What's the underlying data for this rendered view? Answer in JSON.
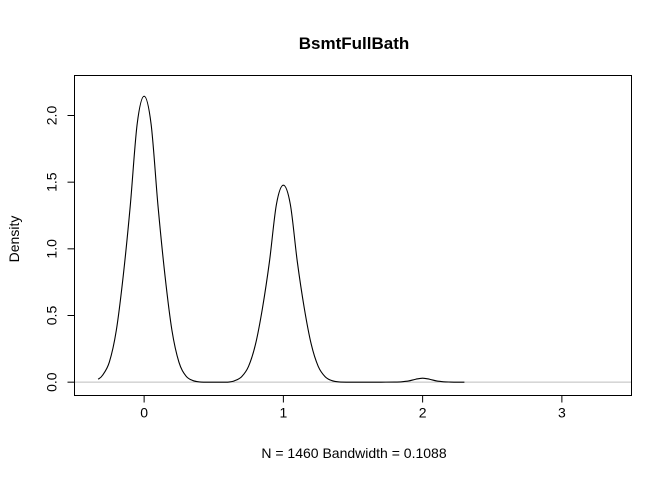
{
  "chart_data": {
    "type": "line",
    "title": "BsmtFullBath",
    "xlabel": "N = 1460   Bandwidth = 0.1088",
    "ylabel": "Density",
    "xlim": [
      -0.5,
      3.5
    ],
    "ylim": [
      -0.1,
      2.3
    ],
    "x_ticks": [
      0,
      1,
      2,
      3
    ],
    "x_tick_labels": [
      "0",
      "1",
      "2",
      "3"
    ],
    "y_ticks": [
      0,
      0.5,
      1,
      1.5,
      2
    ],
    "y_tick_labels": [
      "0.0",
      "0.5",
      "1.0",
      "1.5",
      "2.0"
    ],
    "grid": false,
    "zero_line_color": "#bebebe",
    "series": [
      {
        "color": "#000000",
        "x": [
          -0.33,
          -0.3,
          -0.25,
          -0.2,
          -0.15,
          -0.1,
          -0.05,
          0,
          0.05,
          0.1,
          0.15,
          0.2,
          0.25,
          0.3,
          0.35,
          0.4,
          0.45,
          0.5,
          0.55,
          0.6,
          0.65,
          0.7,
          0.75,
          0.8,
          0.85,
          0.9,
          0.95,
          1,
          1.05,
          1.1,
          1.15,
          1.2,
          1.25,
          1.3,
          1.35,
          1.4,
          1.5,
          1.6,
          1.7,
          1.8,
          1.85,
          1.9,
          1.95,
          2,
          2.05,
          2.1,
          2.15,
          2.2,
          2.25,
          2.3
        ],
        "y": [
          0.022,
          0.05,
          0.15,
          0.387,
          0.798,
          1.318,
          1.936,
          2.145,
          1.936,
          1.318,
          0.798,
          0.387,
          0.15,
          0.047,
          0.012,
          0.002,
          0,
          0,
          0,
          0,
          0.011,
          0.041,
          0.119,
          0.285,
          0.556,
          0.904,
          1.333,
          1.477,
          1.333,
          0.904,
          0.556,
          0.285,
          0.119,
          0.041,
          0.011,
          0.002,
          0,
          0,
          0,
          0.001,
          0.003,
          0.009,
          0.022,
          0.03,
          0.022,
          0.009,
          0.003,
          0.001,
          0,
          0
        ]
      }
    ]
  }
}
